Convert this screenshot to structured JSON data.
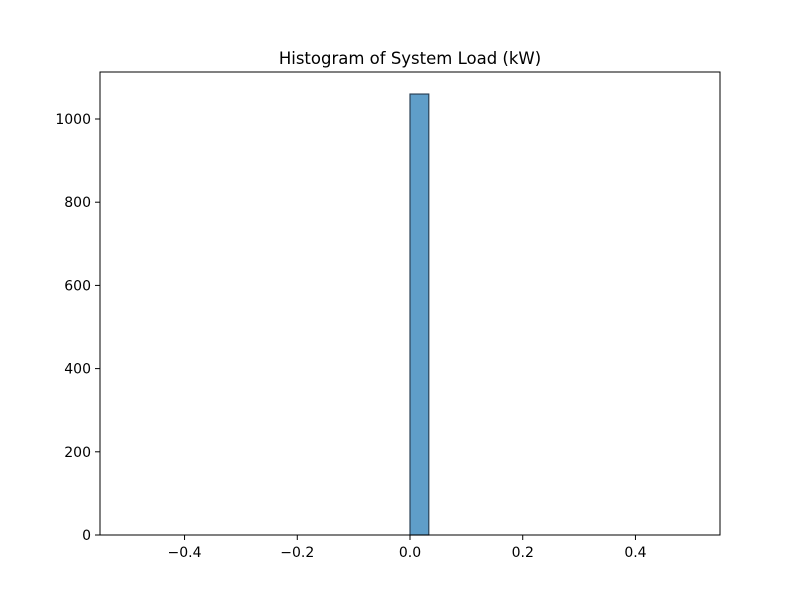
{
  "chart_data": {
    "type": "bar",
    "title": "Histogram of System Load (kW)",
    "xlabel": "",
    "ylabel": "",
    "xlim": [
      -0.55,
      0.55
    ],
    "ylim": [
      0,
      1113
    ],
    "xticks": [
      -0.4,
      -0.2,
      0.0,
      0.2,
      0.4
    ],
    "xtick_labels": [
      "−0.4",
      "−0.2",
      "0.0",
      "0.2",
      "0.4"
    ],
    "yticks": [
      0,
      200,
      400,
      600,
      800,
      1000
    ],
    "ytick_labels": [
      "0",
      "200",
      "400",
      "600",
      "800",
      "1000"
    ],
    "bins": {
      "start": -0.5,
      "end": 0.5,
      "count": 30
    },
    "bin_counts": [
      0,
      0,
      0,
      0,
      0,
      0,
      0,
      0,
      0,
      0,
      0,
      0,
      0,
      0,
      0,
      1060,
      0,
      0,
      0,
      0,
      0,
      0,
      0,
      0,
      0,
      0,
      0,
      0,
      0,
      0
    ],
    "grid": false,
    "bar_color": "#5f9ec9",
    "edge_color": "#2b4257"
  }
}
